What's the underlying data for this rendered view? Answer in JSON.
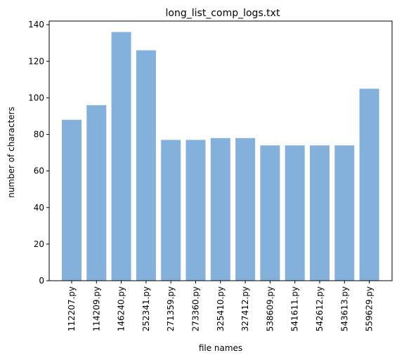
{
  "chart_data": {
    "type": "bar",
    "title": "long_list_comp_logs.txt",
    "xlabel": "file names",
    "ylabel": "number of characters",
    "categories": [
      "112207.py",
      "114209.py",
      "146240.py",
      "252341.py",
      "271359.py",
      "273360.py",
      "325410.py",
      "327412.py",
      "538609.py",
      "541611.py",
      "542612.py",
      "543613.py",
      "559629.py"
    ],
    "values": [
      88,
      96,
      136,
      126,
      77,
      77,
      78,
      78,
      74,
      74,
      74,
      74,
      105
    ],
    "ylim": [
      0,
      142
    ],
    "yticks": [
      0,
      20,
      40,
      60,
      80,
      100,
      120,
      140
    ],
    "bar_color": "#84b0dc",
    "bar_opacity": 1,
    "grid": false,
    "legend": "none"
  }
}
